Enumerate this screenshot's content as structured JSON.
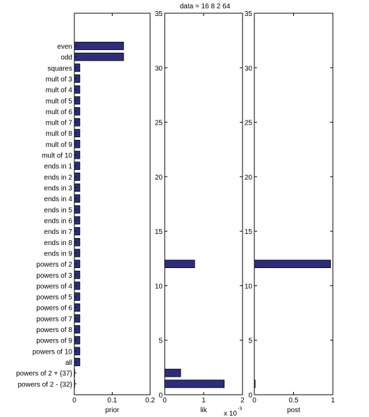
{
  "chart_data": [
    {
      "type": "bar",
      "orientation": "horizontal",
      "title": "",
      "xlabel": "prior",
      "xlim": [
        0,
        0.2
      ],
      "xticks": [
        "0",
        "0.1",
        "0.2"
      ],
      "grid": false,
      "categories": [
        "even",
        "odd",
        "squares",
        "mult of 3",
        "mult of 4",
        "mult of 5",
        "mult of 6",
        "mult of 7",
        "mult of 8",
        "mult of 9",
        "mult of 10",
        "ends in 1",
        "ends in 2",
        "ends in 3",
        "ends in 4",
        "ends in 5",
        "ends in 6",
        "ends in 7",
        "ends in 8",
        "ends in 9",
        "powers of 2",
        "powers of 3",
        "powers of 4",
        "powers of 5",
        "powers of 6",
        "powers of 7",
        "powers of 8",
        "powers of 9",
        "powers of 10",
        "all",
        "powers of 2 + {37}",
        "powers of 2 - {32}"
      ],
      "values": [
        0.13,
        0.13,
        0.0145,
        0.0145,
        0.0145,
        0.0145,
        0.0145,
        0.0145,
        0.0145,
        0.0145,
        0.0145,
        0.0145,
        0.0145,
        0.0145,
        0.0145,
        0.0145,
        0.0145,
        0.0145,
        0.0145,
        0.0145,
        0.0145,
        0.0145,
        0.0145,
        0.0145,
        0.0145,
        0.0145,
        0.0145,
        0.0145,
        0.0145,
        0.0145,
        0.0005,
        0.0005
      ],
      "bar_color": "#2e2d7a"
    },
    {
      "type": "bar",
      "orientation": "horizontal",
      "title": "data = 16   8   2  64",
      "xlabel": "lik",
      "xscale_label": "x 10",
      "xscale_exp": "-3",
      "xlim": [
        0,
        2
      ],
      "xticks": [
        "0",
        "1",
        "2"
      ],
      "ylim": [
        0,
        35
      ],
      "yticks": [
        "0",
        "5",
        "10",
        "15",
        "20",
        "25",
        "30",
        "35"
      ],
      "grid": false,
      "positions": [
        12,
        2,
        1
      ],
      "values": [
        0.77,
        0.41,
        1.53
      ],
      "bar_color": "#2e2d7a"
    },
    {
      "type": "bar",
      "orientation": "horizontal",
      "title": "",
      "xlabel": "post",
      "xlim": [
        0,
        1
      ],
      "xticks": [
        "0",
        "0.5",
        "1"
      ],
      "ylim": [
        0,
        35
      ],
      "yticks": [
        "0",
        "5",
        "10",
        "15",
        "20",
        "25",
        "30",
        "35"
      ],
      "grid": false,
      "positions": [
        12,
        1
      ],
      "values": [
        0.97,
        0.01
      ],
      "bar_color": "#2e2d7a"
    }
  ]
}
